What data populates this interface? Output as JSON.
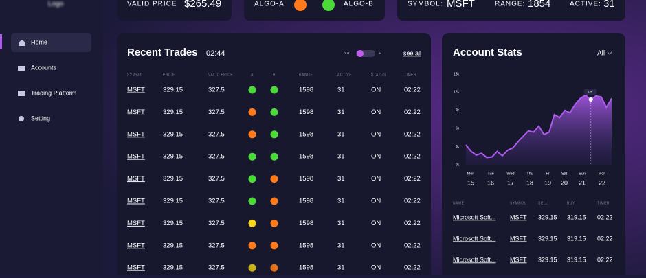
{
  "sidebar": {
    "logo": "Logo",
    "nav": [
      "Home",
      "Accounts",
      "Trading Platform",
      "Setting"
    ]
  },
  "top": {
    "valid_price_label": "VALID PRICE",
    "valid_price": "$265.49",
    "algo_a": "ALGO-A",
    "algo_a_color": "#ff7a1a",
    "algo_b": "ALGO-B",
    "algo_b_color": "#4cd93a",
    "symbol_label": "SYMBOL:",
    "symbol": "MSFT",
    "range_label": "RANGE:",
    "range": "1854",
    "active_label": "ACTIVE:",
    "active": "31"
  },
  "trades": {
    "title": "Recent Trades",
    "time": "02:44",
    "toggle_out": "OUT",
    "toggle_in": "IN",
    "see_all": "see all",
    "columns": [
      "SYMBOL",
      "PRICE",
      "VALID PRICE",
      "A",
      "B",
      "RANGE",
      "ACTIVE",
      "STATUS",
      "TIMER"
    ],
    "rows": [
      {
        "symbol": "MSFT",
        "price": "329.15",
        "valid_price": "327.5",
        "a": "#4cd93a",
        "b": "#4cd93a",
        "range": "1598",
        "active": "31",
        "status": "ON",
        "timer": "02:22"
      },
      {
        "symbol": "MSFT",
        "price": "329.15",
        "valid_price": "327.5",
        "a": "#ff7a1a",
        "b": "#4cd93a",
        "range": "1598",
        "active": "31",
        "status": "ON",
        "timer": "02:22"
      },
      {
        "symbol": "MSFT",
        "price": "329.15",
        "valid_price": "327.5",
        "a": "#ff7a1a",
        "b": "#4cd93a",
        "range": "1598",
        "active": "31",
        "status": "ON",
        "timer": "02:22"
      },
      {
        "symbol": "MSFT",
        "price": "329.15",
        "valid_price": "327.5",
        "a": "#4cd93a",
        "b": "#4cd93a",
        "range": "1598",
        "active": "31",
        "status": "ON",
        "timer": "02:22"
      },
      {
        "symbol": "MSFT",
        "price": "329.15",
        "valid_price": "327.5",
        "a": "#4cd93a",
        "b": "#ff7a1a",
        "range": "1598",
        "active": "31",
        "status": "ON",
        "timer": "02:22"
      },
      {
        "symbol": "MSFT",
        "price": "329.15",
        "valid_price": "327.5",
        "a": "#4cd93a",
        "b": "#ff7a1a",
        "range": "1598",
        "active": "31",
        "status": "ON",
        "timer": "02:22"
      },
      {
        "symbol": "MSFT",
        "price": "329.15",
        "valid_price": "327.5",
        "a": "#f5d41a",
        "b": "#ff7a1a",
        "range": "1598",
        "active": "31",
        "status": "ON",
        "timer": "02:22"
      },
      {
        "symbol": "MSFT",
        "price": "329.15",
        "valid_price": "327.5",
        "a": "#ff7a1a",
        "b": "#ff7a1a",
        "range": "1598",
        "active": "31",
        "status": "ON",
        "timer": "02:22"
      },
      {
        "symbol": "MSFT",
        "price": "329.15",
        "valid_price": "327.5",
        "a": "#c9b21a",
        "b": "#e0701a",
        "range": "1598",
        "active": "31",
        "status": "ON",
        "timer": "02:22"
      }
    ]
  },
  "stats": {
    "title": "Account Stats",
    "filter": "All",
    "chart": {
      "type": "area",
      "color": "#b05cf0",
      "values": [
        3.3,
        2.2,
        1.6,
        1.9,
        1.2,
        1.3,
        2.2,
        1.5,
        2.4,
        2.8,
        3.8,
        4.7,
        5.6,
        5.4,
        6.4,
        5.0,
        5.4,
        8.3,
        7.8,
        9.0,
        8.6,
        10.0,
        11.0,
        11.5,
        10.8,
        11.4,
        11.2,
        9.5,
        11.0
      ],
      "ylim": [
        0,
        15
      ],
      "yticks": [
        {
          "value": 0,
          "label": "0k"
        },
        {
          "value": 3,
          "label": "3k"
        },
        {
          "value": 6,
          "label": "6k"
        },
        {
          "value": 9,
          "label": "9k"
        },
        {
          "value": 12,
          "label": "12k"
        },
        {
          "value": 15,
          "label": "15k"
        }
      ],
      "tooltip": "10k",
      "days": [
        {
          "day": "Mon",
          "date": "15"
        },
        {
          "day": "Tue",
          "date": "16"
        },
        {
          "day": "Wed",
          "date": "17"
        },
        {
          "day": "Thu",
          "date": "18"
        },
        {
          "day": "Fr",
          "date": "19"
        },
        {
          "day": "Sat",
          "date": "20"
        },
        {
          "day": "Sun",
          "date": "21"
        },
        {
          "day": "Mon",
          "date": "22"
        }
      ]
    },
    "table": {
      "columns": [
        "NAME",
        "SYMBOL",
        "SELL",
        "BUY",
        "TIMER"
      ],
      "rows": [
        {
          "name": "Microsoft Soft...",
          "symbol": "MSFT",
          "sell": "329.15",
          "buy": "319.15",
          "timer": "02:22"
        },
        {
          "name": "Microsoft Soft...",
          "symbol": "MSFT",
          "sell": "329.15",
          "buy": "319.15",
          "timer": "02:22"
        },
        {
          "name": "Microsoft Soft...",
          "symbol": "MSFT",
          "sell": "329.15",
          "buy": "319.15",
          "timer": "02:22"
        }
      ]
    }
  }
}
